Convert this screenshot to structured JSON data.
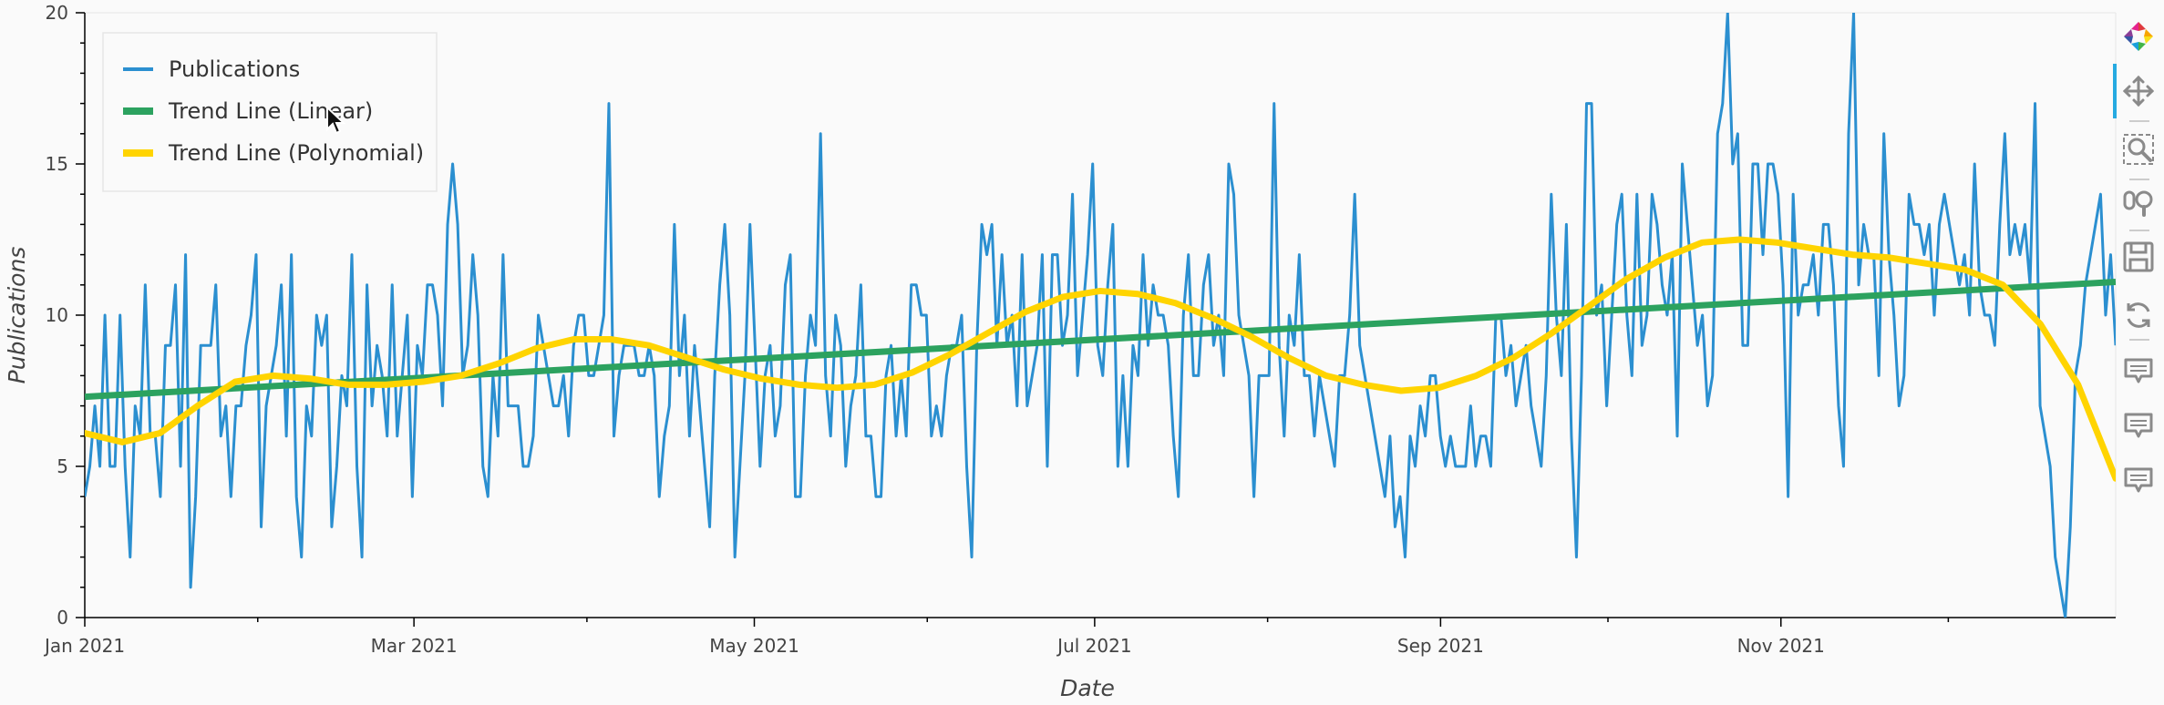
{
  "toolbar": {
    "tools": [
      "bokeh-logo-icon",
      "pan-icon",
      "box-zoom-icon",
      "wheel-zoom-icon",
      "save-icon",
      "reset-icon",
      "hover-icon",
      "hover-icon",
      "hover-icon"
    ],
    "active_tool": "pan-icon"
  },
  "chart_data": {
    "type": "line",
    "xlabel": "Date",
    "ylabel": "Publications",
    "x_start": "2021-01-01",
    "x_end": "2021-12-31",
    "ylim": [
      0,
      20
    ],
    "x_tick_labels": [
      "Jan 2021",
      "Mar 2021",
      "May 2021",
      "Jul 2021",
      "Sep 2021",
      "Nov 2021"
    ],
    "x_tick_dates": [
      "2021-01-01",
      "2021-03-01",
      "2021-05-01",
      "2021-07-01",
      "2021-09-01",
      "2021-11-01"
    ],
    "y_ticks": [
      0,
      5,
      10,
      15,
      20
    ],
    "grid": false,
    "legend_position": "top-left",
    "colors": {
      "publications": "#2b8fd0",
      "linear": "#2ca25f",
      "polynomial": "#ffd400"
    },
    "series": [
      {
        "name": "Publications",
        "style": "thin-line",
        "values": [
          4,
          5,
          7,
          5,
          10,
          5,
          5,
          10,
          5,
          2,
          7,
          6,
          11,
          6,
          6,
          4,
          9,
          9,
          11,
          5,
          12,
          1,
          4,
          9,
          9,
          9,
          11,
          6,
          7,
          4,
          7,
          7,
          9,
          10,
          12,
          3,
          7,
          8,
          9,
          11,
          6,
          12,
          4,
          2,
          7,
          6,
          10,
          9,
          10,
          3,
          5,
          8,
          7,
          12,
          5,
          2,
          11,
          7,
          9,
          8,
          6,
          11,
          6,
          8,
          10,
          4,
          9,
          8,
          11,
          11,
          10,
          7,
          13,
          15,
          13,
          8,
          9,
          12,
          10,
          5,
          4,
          8,
          6,
          12,
          7,
          7,
          7,
          5,
          5,
          6,
          10,
          9,
          8,
          7,
          7,
          8,
          6,
          9,
          10,
          10,
          8,
          8,
          9,
          10,
          17,
          6,
          8,
          9,
          9,
          9,
          8,
          8,
          9,
          8,
          4,
          6,
          7,
          13,
          8,
          10,
          6,
          9,
          7,
          5,
          3,
          8,
          11,
          13,
          10,
          2,
          5,
          8,
          13,
          9,
          5,
          8,
          9,
          6,
          7,
          11,
          12,
          4,
          4,
          8,
          10,
          9,
          16,
          8,
          6,
          10,
          9,
          5,
          7,
          8,
          11,
          6,
          6,
          4,
          4,
          8,
          9,
          6,
          8,
          6,
          11,
          11,
          10,
          10,
          6,
          7,
          6,
          8,
          9,
          9,
          10,
          5,
          2,
          9,
          13,
          12,
          13,
          9,
          12,
          9,
          10,
          7,
          12,
          7,
          8,
          9,
          12,
          5,
          12,
          12,
          9,
          10,
          14,
          8,
          10,
          12,
          15,
          9,
          8,
          11,
          13,
          5,
          8,
          5,
          9,
          8,
          12,
          9,
          11,
          10,
          10,
          9,
          6,
          4,
          10,
          12,
          8,
          8,
          11,
          12,
          9,
          10,
          8,
          15,
          14,
          10,
          9,
          8,
          4,
          8,
          8,
          8,
          17,
          9,
          6,
          10,
          9,
          12,
          8,
          8,
          6,
          8,
          7,
          6,
          5,
          8,
          8,
          10,
          14,
          9,
          8,
          7,
          6,
          5,
          4,
          6,
          3,
          4,
          2,
          6,
          5,
          7,
          6,
          8,
          8,
          6,
          5,
          6,
          5,
          5,
          5,
          7,
          5,
          6,
          6,
          5,
          10,
          10,
          8,
          9,
          7,
          8,
          9,
          7,
          6,
          5,
          8,
          14,
          10,
          8,
          13,
          6,
          2,
          8,
          17,
          17,
          10,
          11,
          7,
          10,
          13,
          14,
          10,
          8,
          14,
          9,
          10,
          14,
          13,
          11,
          10,
          12,
          6,
          15,
          13,
          11,
          9,
          10,
          7,
          8,
          16,
          17,
          20,
          15,
          16,
          9,
          9,
          15,
          15,
          12,
          15,
          15,
          14,
          11,
          4,
          14,
          10,
          11,
          11,
          12,
          10,
          13,
          13,
          11,
          7,
          5,
          16,
          20,
          11,
          13,
          12,
          12,
          8,
          16,
          12,
          10,
          7,
          8,
          14,
          13,
          13,
          12,
          13,
          10,
          13,
          14,
          13,
          12,
          11,
          12,
          10,
          15,
          11,
          10,
          10,
          9,
          13,
          16,
          12,
          13,
          12,
          13,
          11,
          17,
          7,
          6,
          5,
          2,
          1,
          0,
          3,
          8,
          9,
          11,
          12,
          13,
          14,
          10,
          12,
          9
        ]
      },
      {
        "name": "Trend Line (Linear)",
        "style": "thick-line",
        "values": [
          7.3,
          11.1
        ]
      },
      {
        "name": "Trend Line (Polynomial)",
        "style": "thick-line",
        "values": [
          6.1,
          5.8,
          6.1,
          7.0,
          7.8,
          8.0,
          7.9,
          7.7,
          7.7,
          7.8,
          8.0,
          8.4,
          8.9,
          9.2,
          9.2,
          9.0,
          8.6,
          8.2,
          7.9,
          7.7,
          7.6,
          7.7,
          8.1,
          8.7,
          9.4,
          10.1,
          10.6,
          10.8,
          10.7,
          10.4,
          9.9,
          9.3,
          8.6,
          8.0,
          7.7,
          7.5,
          7.6,
          8.0,
          8.6,
          9.4,
          10.3,
          11.2,
          11.9,
          12.4,
          12.5,
          12.4,
          12.2,
          12.0,
          11.9,
          11.7,
          11.5,
          11.0,
          9.7,
          7.7,
          4.6
        ]
      }
    ]
  }
}
